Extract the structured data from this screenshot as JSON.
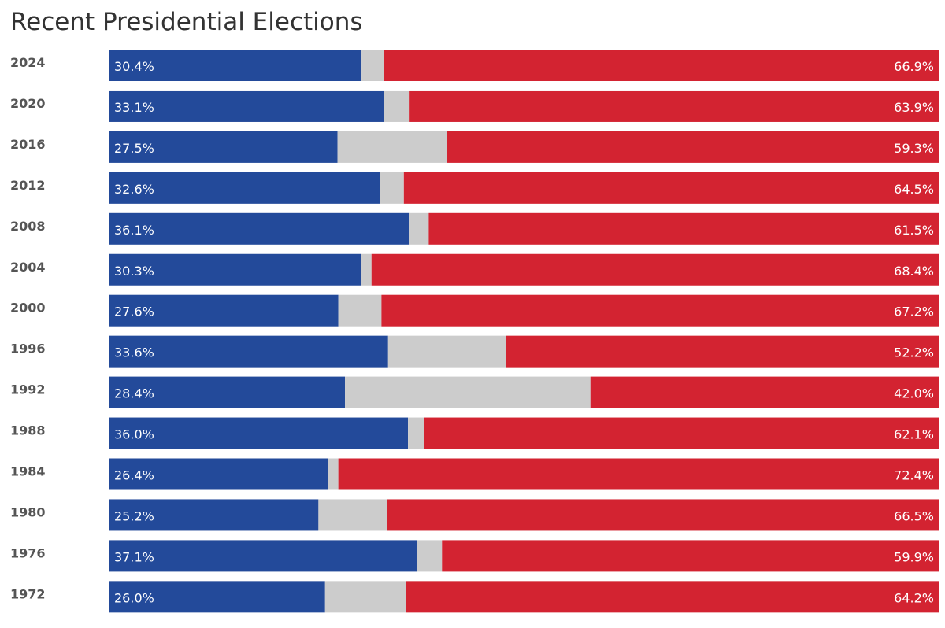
{
  "title": "Recent Presidential Elections",
  "colors": {
    "dem": "#234a9a",
    "other": "#cccccc",
    "rep": "#d32331",
    "year_text": "#555555",
    "bar_text": "#ffffff"
  },
  "chart_data": {
    "type": "bar",
    "orientation": "horizontal",
    "stacked": true,
    "normalized": true,
    "title": "Recent Presidential Elections",
    "categories": [
      "2024",
      "2020",
      "2016",
      "2012",
      "2008",
      "2004",
      "2000",
      "1996",
      "1992",
      "1988",
      "1984",
      "1980",
      "1976",
      "1972"
    ],
    "series": [
      {
        "values": [
          30.4,
          33.1,
          27.5,
          32.6,
          36.1,
          30.3,
          27.6,
          33.6,
          28.4,
          36.0,
          26.4,
          25.2,
          37.1,
          26.0
        ],
        "labels": [
          "30.4%",
          "33.1%",
          "27.5%",
          "32.6%",
          "36.1%",
          "30.3%",
          "27.6%",
          "33.6%",
          "28.4%",
          "36.0%",
          "26.4%",
          "25.2%",
          "37.1%",
          "26.0%"
        ]
      },
      {
        "values": [
          2.7,
          3.0,
          13.2,
          2.9,
          2.4,
          1.3,
          5.2,
          14.2,
          29.6,
          1.9,
          1.2,
          8.3,
          3.0,
          9.8
        ]
      },
      {
        "values": [
          66.9,
          63.9,
          59.3,
          64.5,
          61.5,
          68.4,
          67.2,
          52.2,
          42.0,
          62.1,
          72.4,
          66.5,
          59.9,
          64.2
        ],
        "labels": [
          "66.9%",
          "63.9%",
          "59.3%",
          "64.5%",
          "61.5%",
          "68.4%",
          "67.2%",
          "52.2%",
          "42.0%",
          "62.1%",
          "72.4%",
          "66.5%",
          "59.9%",
          "64.2%"
        ]
      }
    ],
    "xlim": [
      0,
      100
    ],
    "grid": false,
    "legend": "none"
  }
}
